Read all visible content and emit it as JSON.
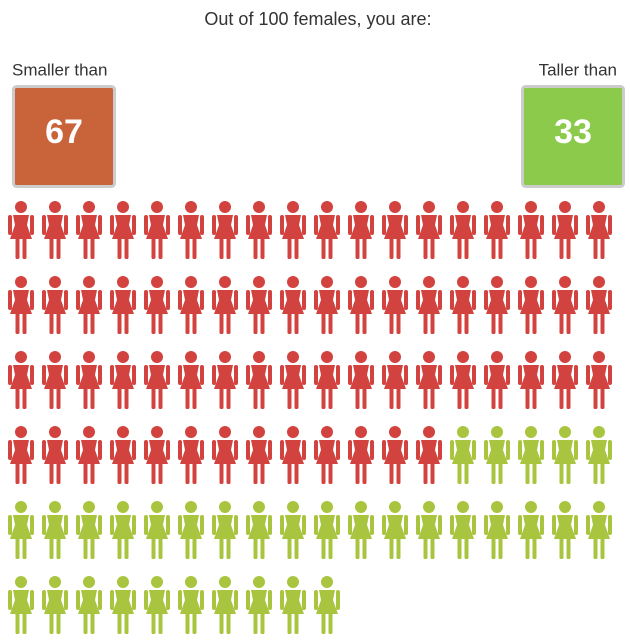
{
  "chart_data": {
    "type": "pictograph",
    "title": "Out of 100 females, you are:",
    "series": [
      {
        "name": "Smaller than",
        "color": "#d2433f",
        "box_color": "#c8633a",
        "values": [
          67
        ]
      },
      {
        "name": "Taller than",
        "color": "#a9c53f",
        "box_color": "#8bca4b",
        "values": [
          33
        ]
      }
    ]
  }
}
